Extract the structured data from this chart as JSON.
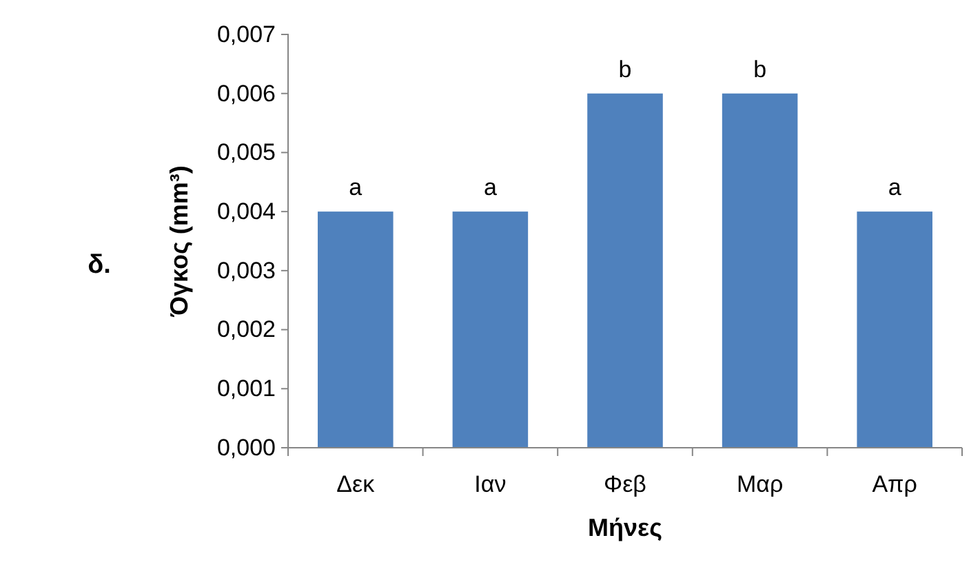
{
  "chart_data": {
    "type": "bar",
    "xlabel": "Μήνες",
    "ylabel": "Όγκος (mm³)",
    "categories": [
      "Δεκ",
      "Ιαν",
      "Φεβ",
      "Μαρ",
      "Απρ"
    ],
    "values": [
      0.004,
      0.004,
      0.006,
      0.006,
      0.004
    ],
    "color": "#4f81bd",
    "ylim": [
      0,
      0.007
    ],
    "yticks": [
      {
        "value": 0,
        "label": "0,000"
      },
      {
        "value": 0.001,
        "label": "0,001"
      },
      {
        "value": 0.002,
        "label": "0,002"
      },
      {
        "value": 0.003,
        "label": "0,003"
      },
      {
        "value": 0.004,
        "label": "0,004"
      },
      {
        "value": 0.005,
        "label": "0,005"
      },
      {
        "value": 0.006,
        "label": "0,006"
      },
      {
        "value": 0.007,
        "label": "0,007"
      }
    ],
    "grid": false,
    "annotations": [
      {
        "text": "a",
        "x": "Δεκ",
        "y": 0.004
      },
      {
        "text": "a",
        "x": "Ιαν",
        "y": 0.004
      },
      {
        "text": "b",
        "x": "Φεβ",
        "y": 0.006
      },
      {
        "text": "b",
        "x": "Μαρ",
        "y": 0.006
      },
      {
        "text": "a",
        "x": "Απρ",
        "y": 0.004
      },
      "δ."
    ]
  }
}
